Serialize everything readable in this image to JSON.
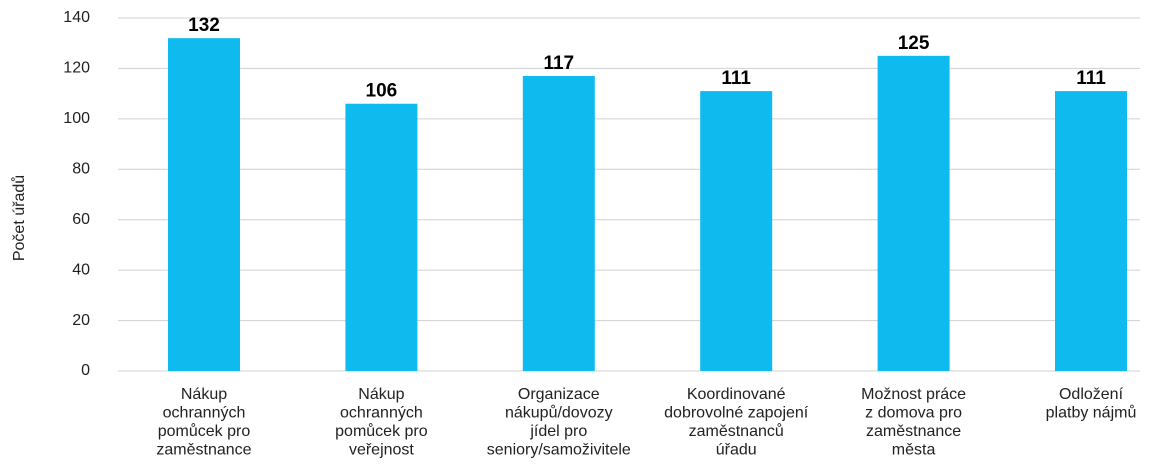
{
  "chart_data": {
    "type": "bar",
    "y_label": "Počet úřadů",
    "categories": [
      [
        "Nákup",
        "ochranných",
        "pomůcek pro",
        "zaměstnance"
      ],
      [
        "Nákup",
        "ochranných",
        "pomůcek pro",
        "veřejnost"
      ],
      [
        "Organizace",
        "nákupů/dovozy",
        "jídel pro",
        "seniory/samoživitele"
      ],
      [
        "Koordinované",
        "dobrovolné zapojení",
        "zaměstnanců",
        "úřadu"
      ],
      [
        "Možnost práce",
        "z domova pro",
        "zaměstnance",
        "města"
      ],
      [
        "Odložení",
        "platby nájmů"
      ]
    ],
    "values": [
      132,
      106,
      117,
      111,
      125,
      111
    ],
    "color": "#0fbbee",
    "ylim": [
      0,
      140
    ],
    "yticks": [
      0,
      20,
      40,
      60,
      80,
      100,
      120,
      140
    ],
    "grid": true
  }
}
